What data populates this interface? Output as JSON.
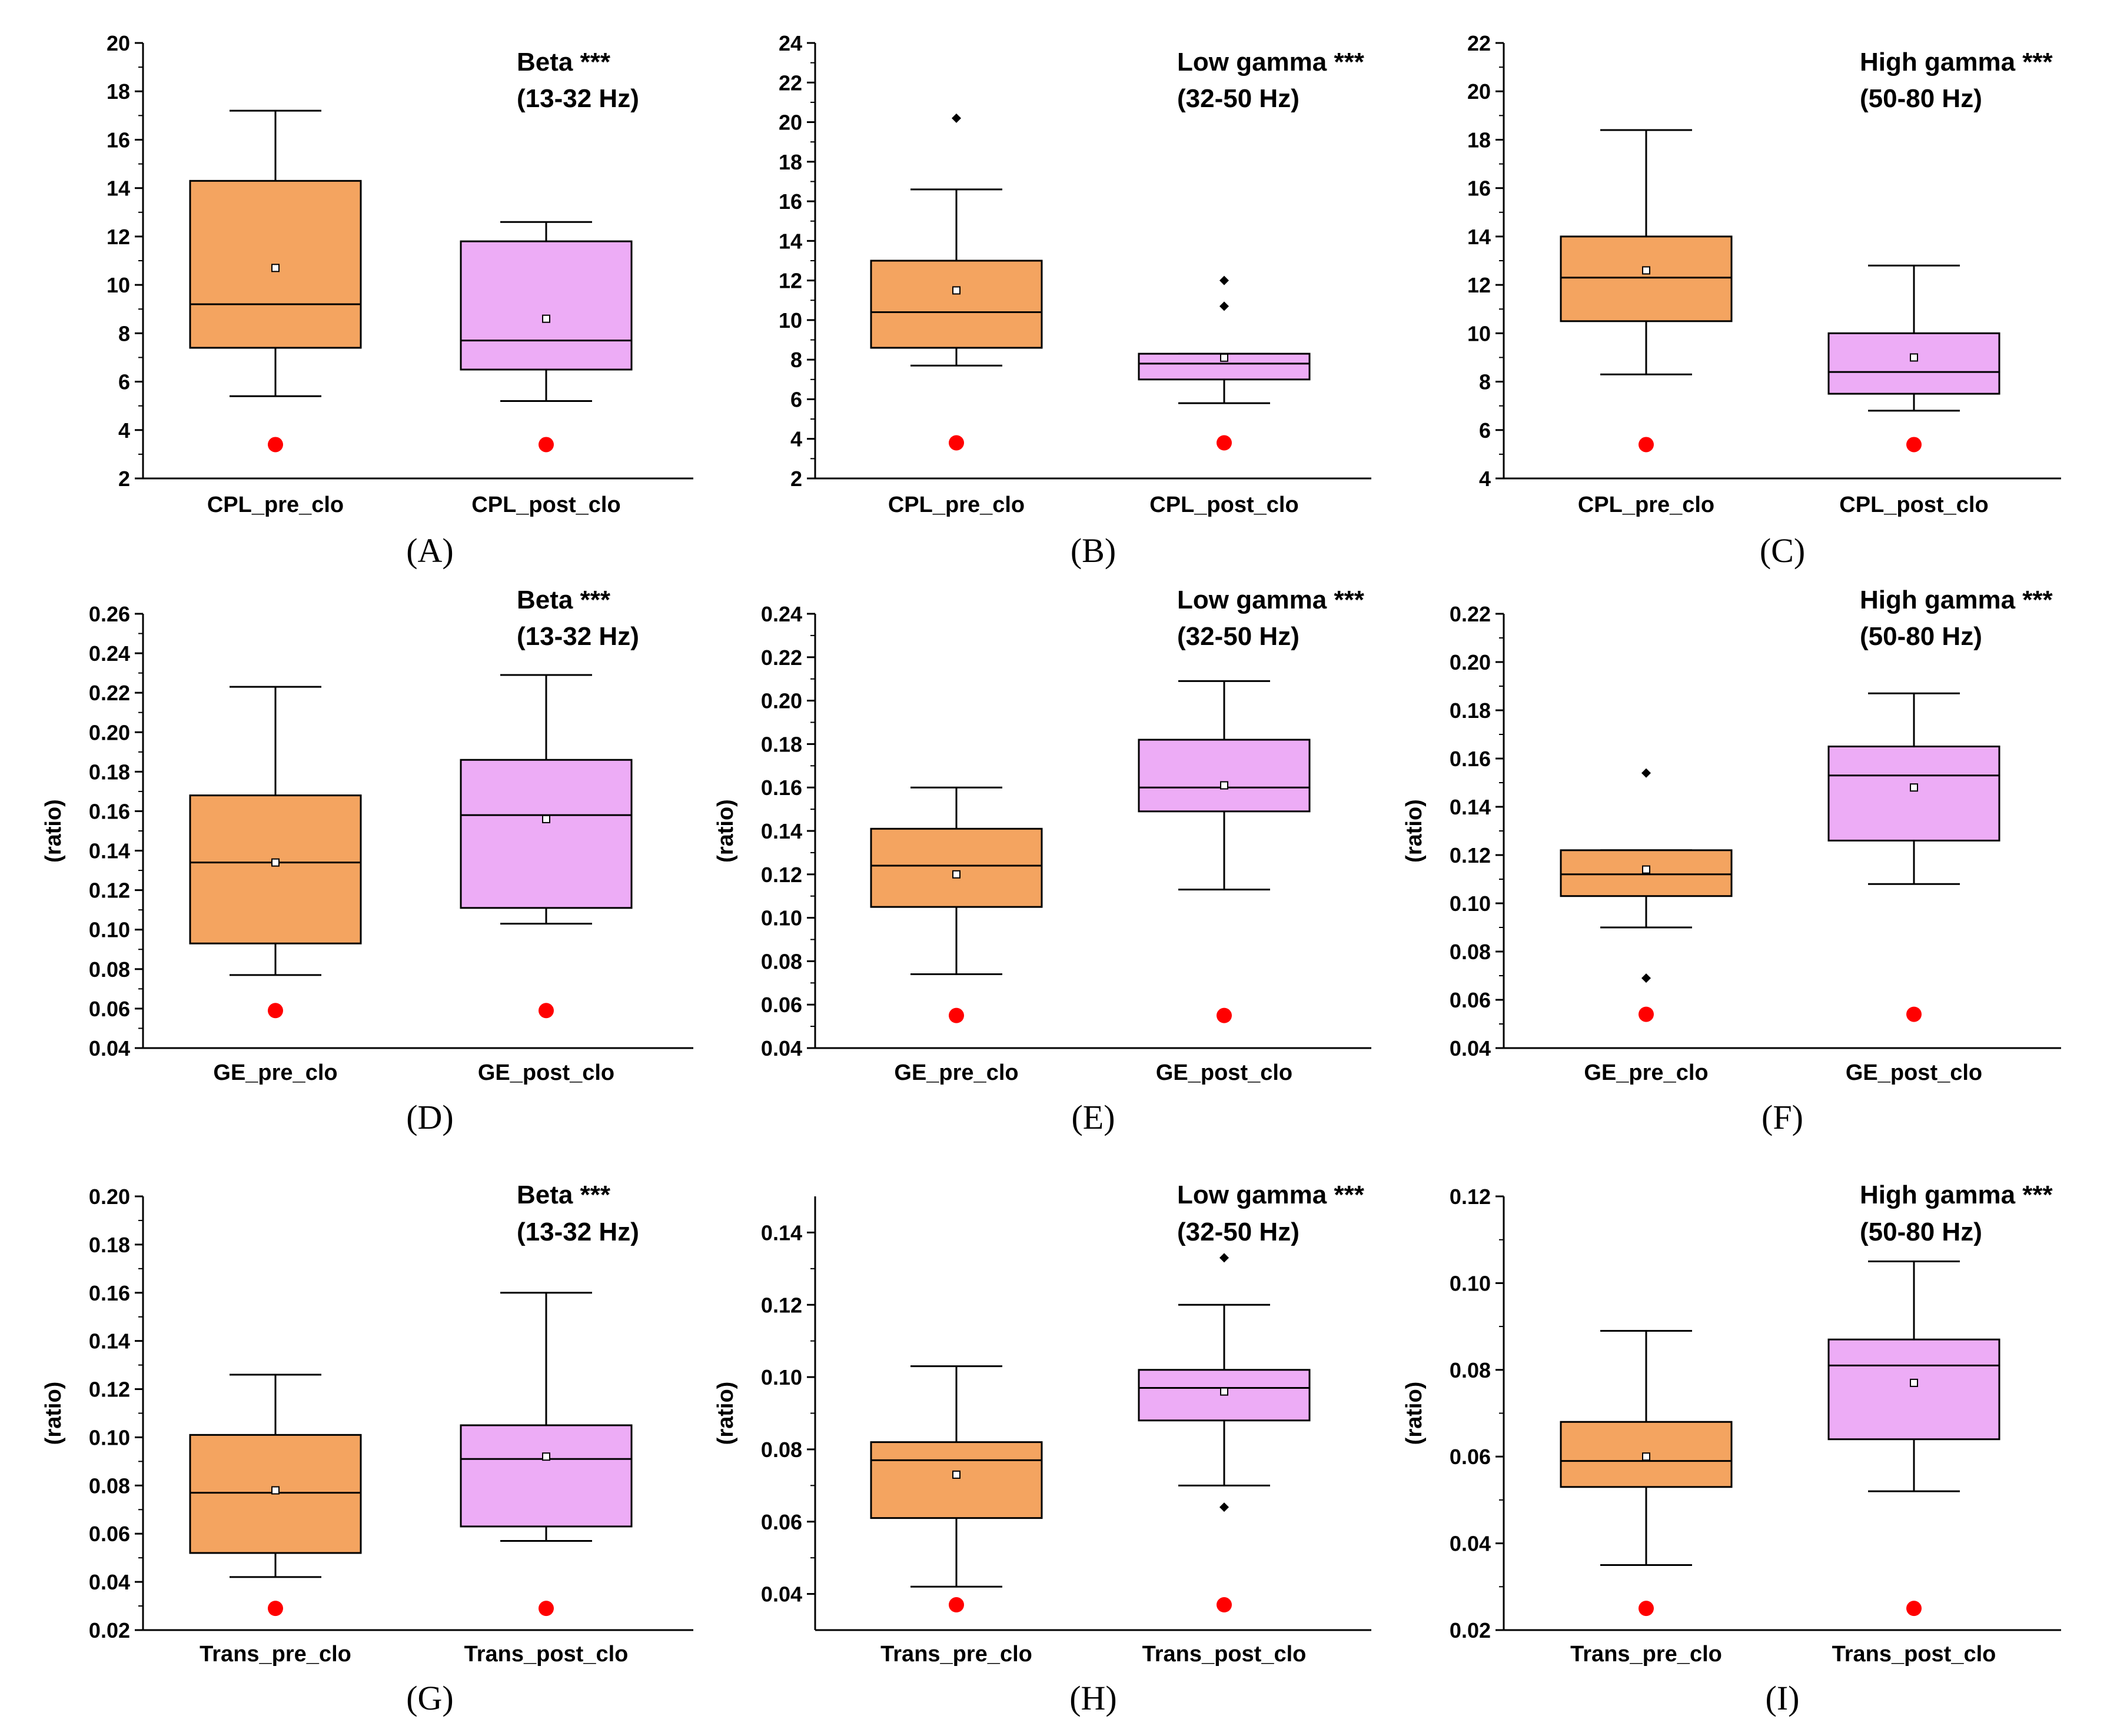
{
  "colors": {
    "pre": "#F4A460",
    "post": "#EDACF6",
    "marker": "#FF0000",
    "axis": "#000000"
  },
  "chart_data": [
    {
      "type": "box",
      "letter": "(A)",
      "title": "Beta ***",
      "subtitle": "(13-32 Hz)",
      "ylabel": "",
      "ylim": [
        2,
        20
      ],
      "yticks": [
        "2",
        "4",
        "6",
        "8",
        "10",
        "12",
        "14",
        "16",
        "18",
        "20"
      ],
      "categories": [
        "CPL_pre_clo",
        "CPL_post_clo"
      ],
      "boxes": [
        {
          "min": 5.4,
          "q1": 7.4,
          "median": 9.2,
          "q3": 14.3,
          "max": 17.2,
          "mean": 10.7,
          "outliers": []
        },
        {
          "min": 5.2,
          "q1": 6.5,
          "median": 7.7,
          "q3": 11.8,
          "max": 12.6,
          "mean": 8.6,
          "outliers": []
        }
      ],
      "marker": 3.4
    },
    {
      "type": "box",
      "letter": "(B)",
      "title": "Low gamma ***",
      "subtitle": "(32-50 Hz)",
      "ylabel": "",
      "ylim": [
        2,
        24
      ],
      "yticks": [
        "2",
        "4",
        "6",
        "8",
        "10",
        "12",
        "14",
        "16",
        "18",
        "20",
        "22",
        "24"
      ],
      "categories": [
        "CPL_pre_clo",
        "CPL_post_clo"
      ],
      "boxes": [
        {
          "min": 7.7,
          "q1": 8.6,
          "median": 10.4,
          "q3": 13.0,
          "max": 16.6,
          "mean": 11.5,
          "outliers": [
            20.2
          ]
        },
        {
          "min": 5.8,
          "q1": 7.0,
          "median": 7.8,
          "q3": 8.3,
          "max": 8.3,
          "mean": 8.1,
          "outliers": [
            10.7,
            12.0
          ]
        }
      ],
      "marker": 3.8
    },
    {
      "type": "box",
      "letter": "(C)",
      "title": "High gamma ***",
      "subtitle": "(50-80 Hz)",
      "ylabel": "",
      "ylim": [
        4,
        22
      ],
      "yticks": [
        "4",
        "6",
        "8",
        "10",
        "12",
        "14",
        "16",
        "18",
        "20",
        "22"
      ],
      "categories": [
        "CPL_pre_clo",
        "CPL_post_clo"
      ],
      "boxes": [
        {
          "min": 8.3,
          "q1": 10.5,
          "median": 12.3,
          "q3": 14.0,
          "max": 18.4,
          "mean": 12.6,
          "outliers": []
        },
        {
          "min": 6.8,
          "q1": 7.5,
          "median": 8.4,
          "q3": 10.0,
          "max": 12.8,
          "mean": 9.0,
          "outliers": []
        }
      ],
      "marker": 5.4
    },
    {
      "type": "box",
      "letter": "(D)",
      "title": "Beta ***",
      "subtitle": "(13-32 Hz)",
      "ylabel": "(ratio)",
      "ylim": [
        0.04,
        0.26
      ],
      "yticks": [
        "0.04",
        "0.06",
        "0.08",
        "0.10",
        "0.12",
        "0.14",
        "0.16",
        "0.18",
        "0.20",
        "0.22",
        "0.24",
        "0.26"
      ],
      "categories": [
        "GE_pre_clo",
        "GE_post_clo"
      ],
      "boxes": [
        {
          "min": 0.077,
          "q1": 0.093,
          "median": 0.134,
          "q3": 0.168,
          "max": 0.223,
          "mean": 0.134,
          "outliers": []
        },
        {
          "min": 0.103,
          "q1": 0.111,
          "median": 0.158,
          "q3": 0.186,
          "max": 0.229,
          "mean": 0.156,
          "outliers": []
        }
      ],
      "marker": 0.059
    },
    {
      "type": "box",
      "letter": "(E)",
      "title": "Low gamma ***",
      "subtitle": "(32-50 Hz)",
      "ylabel": "(ratio)",
      "ylim": [
        0.04,
        0.24
      ],
      "yticks": [
        "0.04",
        "0.06",
        "0.08",
        "0.10",
        "0.12",
        "0.14",
        "0.16",
        "0.18",
        "0.20",
        "0.22",
        "0.24"
      ],
      "categories": [
        "GE_pre_clo",
        "GE_post_clo"
      ],
      "boxes": [
        {
          "min": 0.074,
          "q1": 0.105,
          "median": 0.124,
          "q3": 0.141,
          "max": 0.16,
          "mean": 0.12,
          "outliers": []
        },
        {
          "min": 0.113,
          "q1": 0.149,
          "median": 0.16,
          "q3": 0.182,
          "max": 0.209,
          "mean": 0.161,
          "outliers": []
        }
      ],
      "marker": 0.055
    },
    {
      "type": "box",
      "letter": "(F)",
      "title": "High gamma ***",
      "subtitle": "(50-80 Hz)",
      "ylabel": "(ratio)",
      "ylim": [
        0.04,
        0.22
      ],
      "yticks": [
        "0.04",
        "0.06",
        "0.08",
        "0.10",
        "0.12",
        "0.14",
        "0.16",
        "0.18",
        "0.20",
        "0.22"
      ],
      "categories": [
        "GE_pre_clo",
        "GE_post_clo"
      ],
      "boxes": [
        {
          "min": 0.09,
          "q1": 0.103,
          "median": 0.112,
          "q3": 0.122,
          "max": 0.122,
          "mean": 0.114,
          "outliers": [
            0.069,
            0.154
          ]
        },
        {
          "min": 0.108,
          "q1": 0.126,
          "median": 0.153,
          "q3": 0.165,
          "max": 0.187,
          "mean": 0.148,
          "outliers": []
        }
      ],
      "marker": 0.054
    },
    {
      "type": "box",
      "letter": "(G)",
      "title": "Beta ***",
      "subtitle": "(13-32 Hz)",
      "ylabel": "(ratio)",
      "ylim": [
        0.02,
        0.2
      ],
      "yticks": [
        "0.02",
        "0.04",
        "0.06",
        "0.08",
        "0.10",
        "0.12",
        "0.14",
        "0.16",
        "0.18",
        "0.20"
      ],
      "categories": [
        "Trans_pre_clo",
        "Trans_post_clo"
      ],
      "boxes": [
        {
          "min": 0.042,
          "q1": 0.052,
          "median": 0.077,
          "q3": 0.101,
          "max": 0.126,
          "mean": 0.078,
          "outliers": []
        },
        {
          "min": 0.057,
          "q1": 0.063,
          "median": 0.091,
          "q3": 0.105,
          "max": 0.16,
          "mean": 0.092,
          "outliers": []
        }
      ],
      "marker": 0.029
    },
    {
      "type": "box",
      "letter": "(H)",
      "title": "Low gamma ***",
      "subtitle": "(32-50 Hz)",
      "ylabel": "(ratio)",
      "ylim": [
        0.03,
        0.15
      ],
      "yticks": [
        "0.04",
        "0.06",
        "0.08",
        "0.10",
        "0.12",
        "0.14"
      ],
      "ytick_values": [
        0.04,
        0.06,
        0.08,
        0.1,
        0.12,
        0.14
      ],
      "categories": [
        "Trans_pre_clo",
        "Trans_post_clo"
      ],
      "boxes": [
        {
          "min": 0.042,
          "q1": 0.061,
          "median": 0.077,
          "q3": 0.082,
          "max": 0.103,
          "mean": 0.073,
          "outliers": []
        },
        {
          "min": 0.07,
          "q1": 0.088,
          "median": 0.097,
          "q3": 0.102,
          "max": 0.12,
          "mean": 0.096,
          "outliers": [
            0.064,
            0.133
          ]
        }
      ],
      "marker": 0.037
    },
    {
      "type": "box",
      "letter": "(I)",
      "title": "High gamma ***",
      "subtitle": "(50-80 Hz)",
      "ylabel": "(ratio)",
      "ylim": [
        0.02,
        0.12
      ],
      "yticks": [
        "0.02",
        "0.04",
        "0.06",
        "0.08",
        "0.10",
        "0.12"
      ],
      "categories": [
        "Trans_pre_clo",
        "Trans_post_clo"
      ],
      "boxes": [
        {
          "min": 0.035,
          "q1": 0.053,
          "median": 0.059,
          "q3": 0.068,
          "max": 0.089,
          "mean": 0.06,
          "outliers": []
        },
        {
          "min": 0.052,
          "q1": 0.064,
          "median": 0.081,
          "q3": 0.087,
          "max": 0.105,
          "mean": 0.077,
          "outliers": []
        }
      ],
      "marker": 0.025
    }
  ]
}
